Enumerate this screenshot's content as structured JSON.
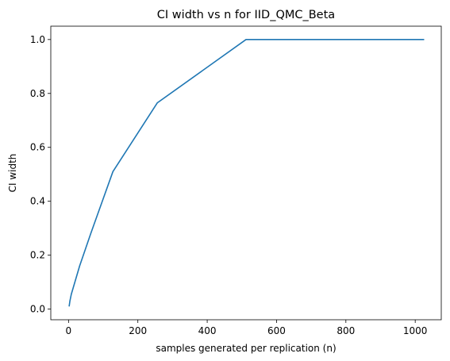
{
  "chart_data": {
    "type": "line",
    "title": "CI width vs n for IID_QMC_Beta",
    "xlabel": "samples generated per replication (n)",
    "ylabel": "CI width",
    "xlim": [
      -51.15,
      1075.15
    ],
    "ylim": [
      -0.0395,
      1.0495
    ],
    "xticks": [
      0,
      200,
      400,
      600,
      800,
      1000
    ],
    "xtick_labels": [
      "0",
      "200",
      "400",
      "600",
      "800",
      "1000"
    ],
    "yticks": [
      0.0,
      0.2,
      0.4,
      0.6,
      0.8,
      1.0
    ],
    "ytick_labels": [
      "0.0",
      "0.2",
      "0.4",
      "0.6",
      "0.8",
      "1.0"
    ],
    "grid": false,
    "series": [
      {
        "color": "#1f77b4",
        "x": [
          2,
          4,
          8,
          16,
          32,
          64,
          128,
          256,
          512,
          1024
        ],
        "y": [
          0.012,
          0.03,
          0.055,
          0.09,
          0.16,
          0.28,
          0.51,
          0.765,
          1.0,
          1.0
        ]
      }
    ]
  }
}
